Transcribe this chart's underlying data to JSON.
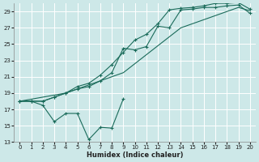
{
  "xlabel": "Humidex (Indice chaleur)",
  "ylabel": "",
  "background_color": "#cde8e8",
  "line_color": "#1a6b5a",
  "xlim": [
    -0.5,
    20.5
  ],
  "ylim": [
    13,
    30
  ],
  "yticks": [
    13,
    15,
    17,
    19,
    21,
    23,
    25,
    27,
    29
  ],
  "xticks": [
    0,
    1,
    2,
    3,
    4,
    5,
    6,
    7,
    8,
    9,
    10,
    11,
    12,
    13,
    14,
    15,
    16,
    17,
    18,
    19,
    20
  ],
  "series": [
    {
      "x": [
        0,
        1,
        2,
        3,
        4,
        5,
        6,
        7,
        8,
        9
      ],
      "y": [
        18.0,
        18.0,
        17.5,
        15.5,
        16.5,
        16.5,
        13.3,
        14.8,
        14.7,
        18.3
      ]
    },
    {
      "x": [
        0,
        4,
        9,
        14,
        19,
        20
      ],
      "y": [
        18.0,
        19.0,
        21.5,
        27.0,
        29.5,
        29.1
      ]
    },
    {
      "x": [
        0,
        1,
        2,
        3,
        4,
        5,
        6,
        7,
        8,
        9,
        10,
        11,
        12,
        13,
        14,
        15,
        16,
        17,
        18,
        19,
        20
      ],
      "y": [
        18.0,
        18.0,
        18.0,
        18.5,
        19.0,
        19.5,
        19.8,
        20.5,
        21.5,
        24.5,
        24.3,
        24.7,
        27.2,
        27.0,
        29.2,
        29.3,
        29.5,
        29.5,
        29.7,
        29.8,
        28.8
      ]
    },
    {
      "x": [
        0,
        1,
        2,
        3,
        4,
        5,
        6,
        7,
        8,
        9,
        10,
        11,
        12,
        13,
        14,
        15,
        16,
        17,
        18,
        19,
        20
      ],
      "y": [
        18.0,
        18.0,
        18.0,
        18.5,
        19.0,
        19.8,
        20.2,
        21.2,
        22.5,
        24.0,
        25.5,
        26.2,
        27.5,
        29.2,
        29.4,
        29.5,
        29.7,
        30.0,
        30.0,
        30.1,
        29.3
      ]
    }
  ]
}
